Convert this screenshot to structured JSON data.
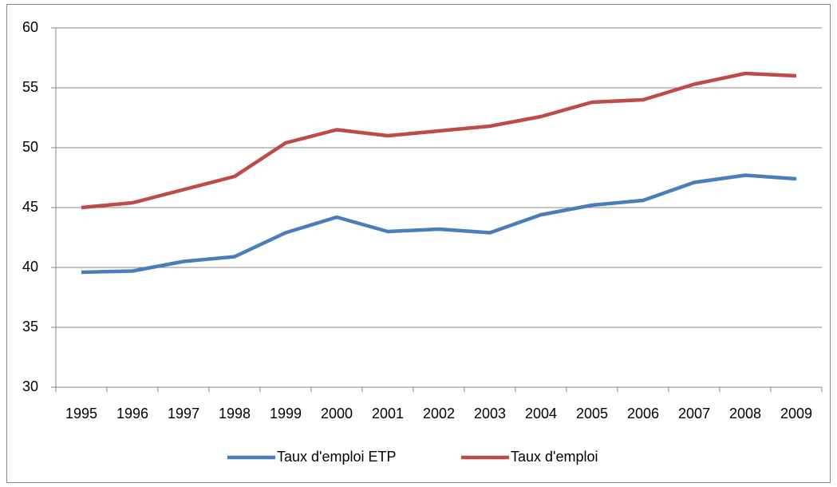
{
  "chart_data": {
    "type": "line",
    "categories": [
      "1995",
      "1996",
      "1997",
      "1998",
      "1999",
      "2000",
      "2001",
      "2002",
      "2003",
      "2004",
      "2005",
      "2006",
      "2007",
      "2008",
      "2009"
    ],
    "series": [
      {
        "name": "Taux d'emploi ETP",
        "color": "#4a7ebb",
        "values": [
          39.6,
          39.7,
          40.5,
          40.9,
          42.9,
          44.2,
          43.0,
          43.2,
          42.9,
          44.4,
          45.2,
          45.6,
          47.1,
          47.7,
          47.4
        ]
      },
      {
        "name": "Taux d'emploi",
        "color": "#be4b48",
        "values": [
          45.0,
          45.4,
          46.5,
          47.6,
          50.4,
          51.5,
          51.0,
          51.4,
          51.8,
          52.6,
          53.8,
          54.0,
          55.3,
          56.2,
          56.0
        ]
      }
    ],
    "ylim": [
      30,
      60
    ],
    "yticks": [
      30,
      35,
      40,
      45,
      50,
      55,
      60
    ],
    "grid": true,
    "legend": "bottom"
  }
}
